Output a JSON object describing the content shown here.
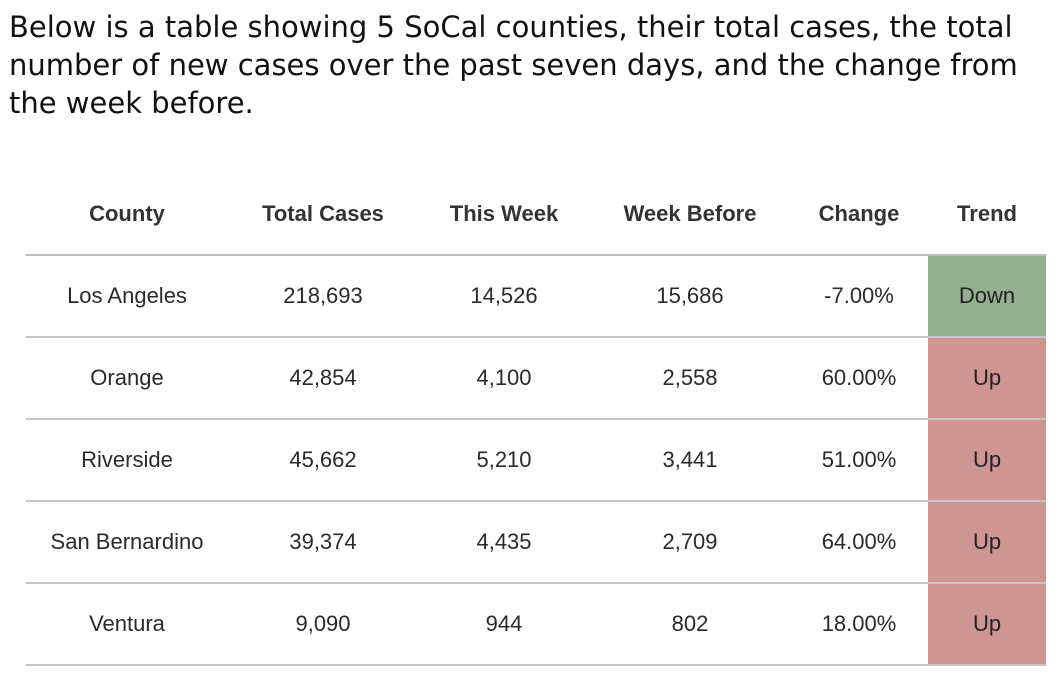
{
  "intro_text": "Below is a table showing 5 SoCal counties, their total cases, the total number of new cases over the past seven days, and the change from the week before.",
  "colors": {
    "down": "#93b18f",
    "up": "#cf9592",
    "header_rule": "#bdbdbd",
    "row_rule": "#c6c6c6"
  },
  "chart_data": {
    "type": "table",
    "columns": [
      "County",
      "Total Cases",
      "This Week",
      "Week Before",
      "Change",
      "Trend"
    ],
    "rows": [
      [
        "Los Angeles",
        "218,693",
        "14,526",
        "15,686",
        "-7.00%",
        "Down"
      ],
      [
        "Orange",
        "42,854",
        "4,100",
        "2,558",
        "60.00%",
        "Up"
      ],
      [
        "Riverside",
        "45,662",
        "5,210",
        "3,441",
        "51.00%",
        "Up"
      ],
      [
        "San Bernardino",
        "39,374",
        "4,435",
        "2,709",
        "64.00%",
        "Up"
      ],
      [
        "Ventura",
        "9,090",
        "944",
        "802",
        "18.00%",
        "Up"
      ]
    ]
  }
}
